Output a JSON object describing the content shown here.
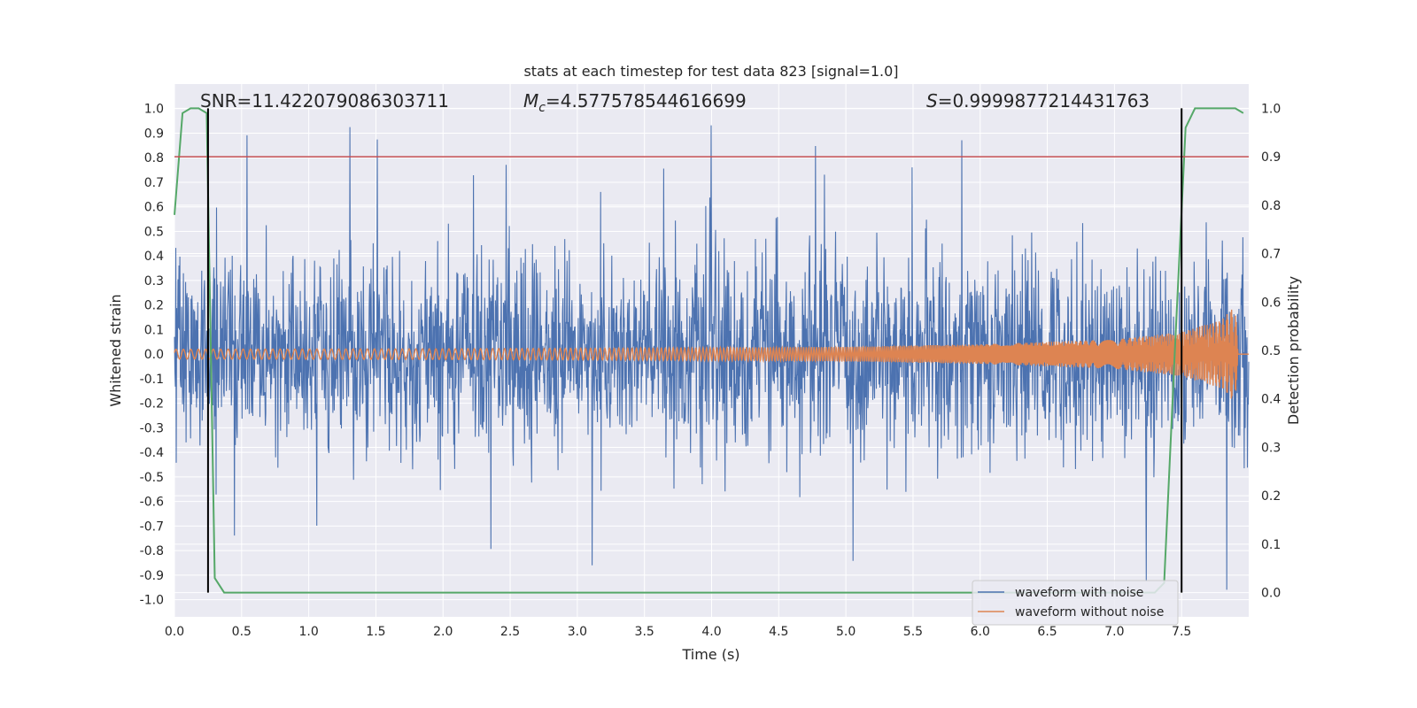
{
  "chart_data": {
    "type": "line",
    "title": "stats at each timestep for test data 823 [signal=1.0]",
    "xlabel": "Time (s)",
    "ylabel": "Whitened strain",
    "y2label": "Detection probability",
    "xlim": [
      0.0,
      8.0
    ],
    "ylim": [
      -1.07,
      1.1
    ],
    "y2lim": [
      -0.05,
      1.05
    ],
    "x_ticks": [
      "0.0",
      "0.5",
      "1.0",
      "1.5",
      "2.0",
      "2.5",
      "3.0",
      "3.5",
      "4.0",
      "4.5",
      "5.0",
      "5.5",
      "6.0",
      "6.5",
      "7.0",
      "7.5"
    ],
    "y_ticks": [
      "1.0",
      "0.9",
      "0.8",
      "0.7",
      "0.6",
      "0.5",
      "0.4",
      "0.3",
      "0.2",
      "0.1",
      "0.0",
      "-0.1",
      "-0.2",
      "-0.3",
      "-0.4",
      "-0.5",
      "-0.6",
      "-0.7",
      "-0.8",
      "-0.9",
      "-1.0"
    ],
    "y2_ticks": [
      "1.0",
      "0.9",
      "0.8",
      "0.7",
      "0.6",
      "0.5",
      "0.4",
      "0.3",
      "0.2",
      "0.1",
      "0.0"
    ],
    "annotations": {
      "snr": "SNR=11.422079086303711",
      "mc_symbol": "M",
      "mc_sub": "c",
      "mc_value": "=4.577578544616699",
      "s_symbol": "S",
      "s_value": "=0.9999877214431763"
    },
    "threshold": {
      "value": 0.9,
      "axis": "y2",
      "color": "#c44e52"
    },
    "vlines": [
      0.25,
      7.5
    ],
    "series": [
      {
        "name": "waveform with noise",
        "color": "#4c72b0",
        "description": "dense noisy strain, envelope roughly ±0.4 with spikes up to ±1.0"
      },
      {
        "name": "waveform without noise",
        "color": "#dd8452",
        "envelope": {
          "x": [
            0.0,
            2.0,
            4.0,
            5.0,
            6.0,
            7.0,
            7.5,
            7.8,
            7.9,
            7.92
          ],
          "amp": [
            0.02,
            0.022,
            0.026,
            0.03,
            0.04,
            0.06,
            0.09,
            0.14,
            0.2,
            0.0
          ]
        }
      },
      {
        "name": "detection probability",
        "color": "#55a868",
        "axis": "y2",
        "x": [
          0.0,
          0.06,
          0.12,
          0.18,
          0.24,
          0.3,
          0.37,
          0.4,
          7.3,
          7.37,
          7.45,
          7.53,
          7.6,
          7.9,
          7.96
        ],
        "y": [
          0.78,
          0.99,
          1.0,
          1.0,
          0.99,
          0.03,
          0.0,
          0.0,
          0.0,
          0.02,
          0.5,
          0.96,
          1.0,
          1.0,
          0.99
        ]
      }
    ],
    "legend": {
      "placement": "lower-right",
      "entries": [
        "waveform with noise",
        "waveform without noise"
      ]
    }
  }
}
